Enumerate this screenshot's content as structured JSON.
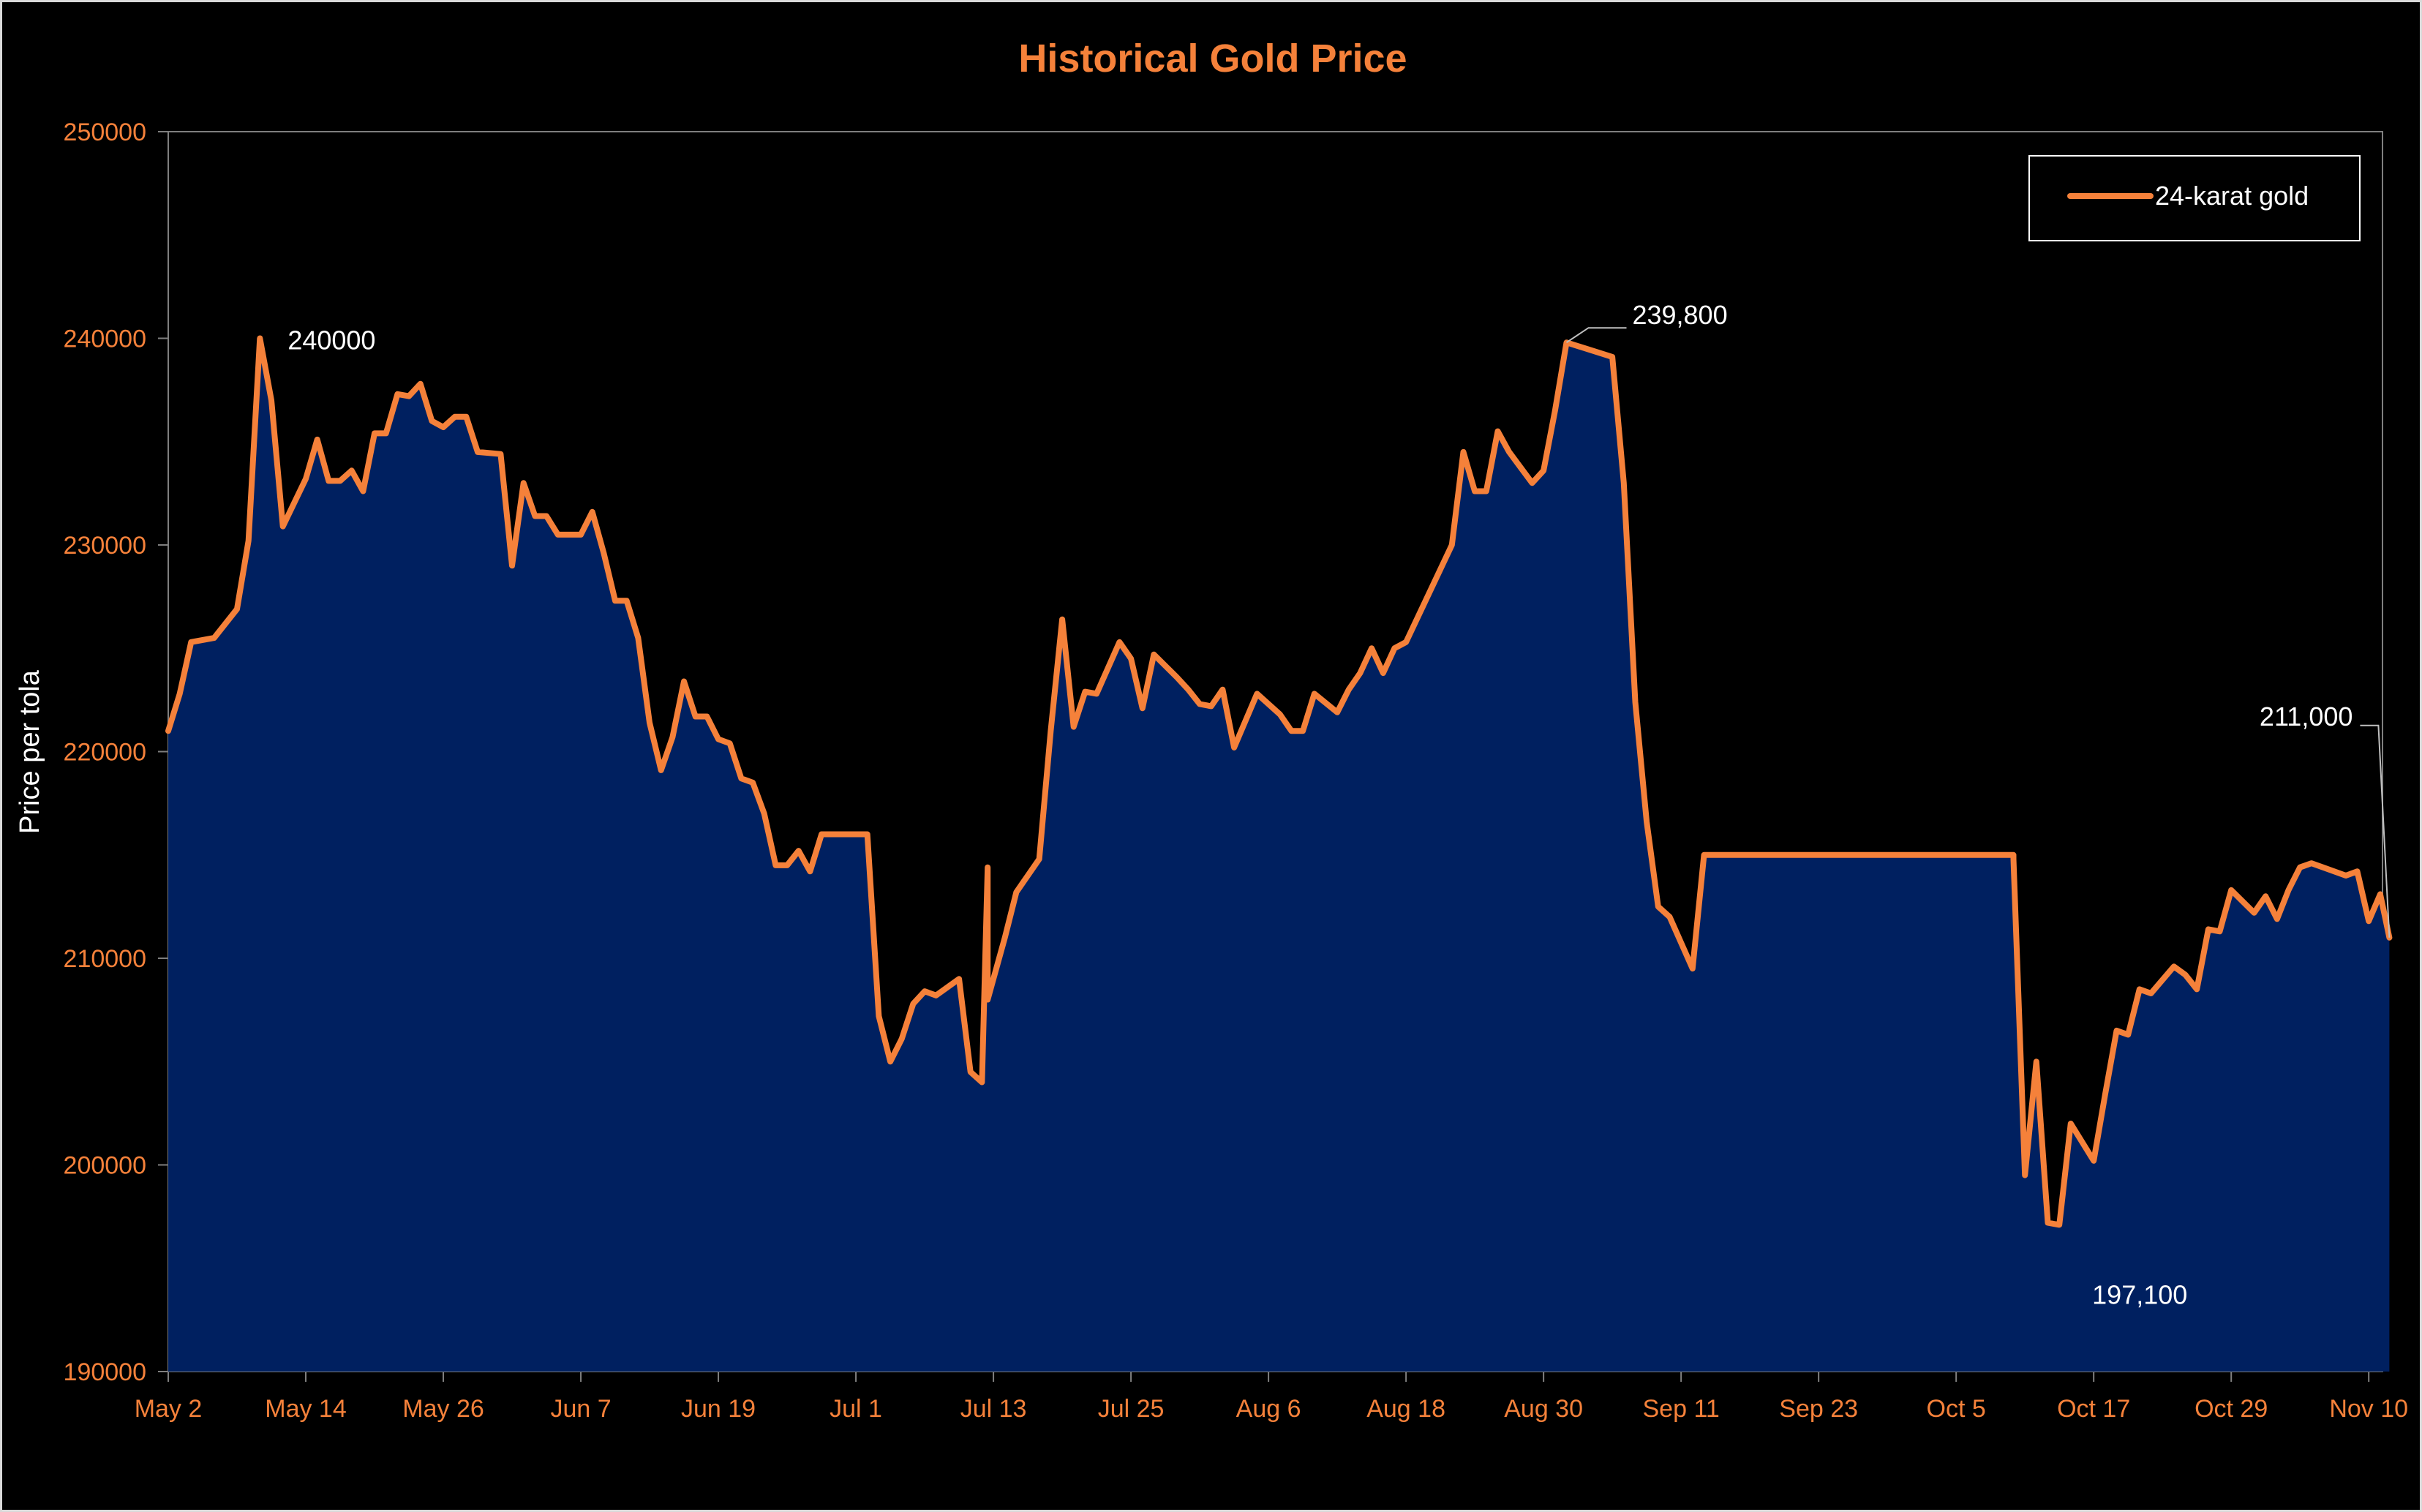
{
  "chart_data": {
    "type": "area",
    "title": "Historical Gold Price",
    "xlabel": "",
    "ylabel": "Price per tola",
    "ylim": [
      190000,
      250000
    ],
    "y_ticks": [
      "190000",
      "200000",
      "210000",
      "220000",
      "230000",
      "240000",
      "250000"
    ],
    "x_ticks": [
      {
        "label": "May 2",
        "day": 0
      },
      {
        "label": "May 14",
        "day": 12
      },
      {
        "label": "May 26",
        "day": 24
      },
      {
        "label": "Jun 7",
        "day": 36
      },
      {
        "label": "Jun 19",
        "day": 48
      },
      {
        "label": "Jul 1",
        "day": 60
      },
      {
        "label": "Jul 13",
        "day": 72
      },
      {
        "label": "Jul 25",
        "day": 84
      },
      {
        "label": "Aug 6",
        "day": 96
      },
      {
        "label": "Aug 18",
        "day": 108
      },
      {
        "label": "Aug 30",
        "day": 120
      },
      {
        "label": "Sep 11",
        "day": 132
      },
      {
        "label": "Sep 23",
        "day": 144
      },
      {
        "label": "Oct 5",
        "day": 156
      },
      {
        "label": "Oct 17",
        "day": 168
      },
      {
        "label": "Oct 29",
        "day": 180
      },
      {
        "label": "Nov 10",
        "day": 192
      }
    ],
    "x_range_days": [
      0,
      193.2
    ],
    "legend": {
      "position": "top-right",
      "entries": [
        "24-karat gold"
      ]
    },
    "grid": false,
    "colors": {
      "line": "#f5813a",
      "fill": "#002060",
      "text_axis": "#f5813a",
      "annotation": "#ffffff",
      "background": "#000000"
    },
    "series": [
      {
        "name": "24-karat gold",
        "points": [
          [
            0,
            221000
          ],
          [
            1,
            222800
          ],
          [
            2,
            225300
          ],
          [
            4,
            225500
          ],
          [
            6,
            226900
          ],
          [
            7,
            230200
          ],
          [
            8,
            240000
          ],
          [
            9,
            237000
          ],
          [
            10,
            230900
          ],
          [
            12,
            233200
          ],
          [
            13,
            235100
          ],
          [
            14,
            233100
          ],
          [
            15,
            233100
          ],
          [
            16,
            233600
          ],
          [
            17,
            232600
          ],
          [
            18,
            235400
          ],
          [
            19,
            235400
          ],
          [
            20,
            237300
          ],
          [
            21,
            237200
          ],
          [
            22,
            237800
          ],
          [
            23,
            236000
          ],
          [
            24,
            235700
          ],
          [
            25,
            236200
          ],
          [
            26,
            236200
          ],
          [
            27,
            234500
          ],
          [
            29,
            234400
          ],
          [
            30,
            229000
          ],
          [
            31,
            233000
          ],
          [
            32,
            231400
          ],
          [
            33,
            231400
          ],
          [
            34,
            230500
          ],
          [
            36,
            230500
          ],
          [
            37,
            231600
          ],
          [
            38,
            229600
          ],
          [
            39,
            227300
          ],
          [
            40,
            227300
          ],
          [
            41,
            225500
          ],
          [
            42,
            221400
          ],
          [
            43,
            219100
          ],
          [
            44,
            220700
          ],
          [
            45,
            223400
          ],
          [
            46,
            221700
          ],
          [
            47,
            221700
          ],
          [
            48,
            220600
          ],
          [
            49,
            220400
          ],
          [
            50,
            218700
          ],
          [
            51,
            218500
          ],
          [
            52,
            217000
          ],
          [
            53,
            214500
          ],
          [
            54,
            214500
          ],
          [
            55,
            215200
          ],
          [
            56,
            214200
          ],
          [
            57,
            216000
          ],
          [
            60,
            216000
          ],
          [
            61,
            216000
          ],
          [
            62,
            207200
          ],
          [
            63,
            205000
          ],
          [
            64,
            206100
          ],
          [
            65,
            207800
          ],
          [
            66,
            208400
          ],
          [
            67,
            208200
          ],
          [
            69,
            209000
          ],
          [
            70,
            204500
          ],
          [
            71,
            204000
          ],
          [
            71.5,
            214400
          ],
          [
            71.5,
            208000
          ],
          [
            73,
            211000
          ],
          [
            74,
            213200
          ],
          [
            76,
            214800
          ],
          [
            77,
            221000
          ],
          [
            78,
            226400
          ],
          [
            79,
            221200
          ],
          [
            80,
            222900
          ],
          [
            81,
            222800
          ],
          [
            83,
            225300
          ],
          [
            84,
            224500
          ],
          [
            85,
            222100
          ],
          [
            86,
            224700
          ],
          [
            88,
            223600
          ],
          [
            89,
            223000
          ],
          [
            90,
            222300
          ],
          [
            91,
            222200
          ],
          [
            92,
            223000
          ],
          [
            93,
            220200
          ],
          [
            95,
            222800
          ],
          [
            97,
            221800
          ],
          [
            98,
            221000
          ],
          [
            99,
            221000
          ],
          [
            100,
            222800
          ],
          [
            102,
            221900
          ],
          [
            103,
            223000
          ],
          [
            104,
            223800
          ],
          [
            105,
            225000
          ],
          [
            106,
            223800
          ],
          [
            107,
            225000
          ],
          [
            108,
            225300
          ],
          [
            112,
            230000
          ],
          [
            113,
            234500
          ],
          [
            114,
            232600
          ],
          [
            115,
            232600
          ],
          [
            116,
            235500
          ],
          [
            117,
            234500
          ],
          [
            119,
            233000
          ],
          [
            120,
            233600
          ],
          [
            121,
            236500
          ],
          [
            122,
            239800
          ],
          [
            126,
            239100
          ],
          [
            127,
            233000
          ],
          [
            128,
            222400
          ],
          [
            129,
            216600
          ],
          [
            130,
            212500
          ],
          [
            131,
            212000
          ],
          [
            133,
            209500
          ],
          [
            134,
            215000
          ],
          [
            161,
            215000
          ],
          [
            161,
            214800
          ],
          [
            162,
            199500
          ],
          [
            163,
            205000
          ],
          [
            164,
            197200
          ],
          [
            165,
            197100
          ],
          [
            166,
            202000
          ],
          [
            168,
            200200
          ],
          [
            169,
            203400
          ],
          [
            170,
            206500
          ],
          [
            171,
            206300
          ],
          [
            172,
            208500
          ],
          [
            173,
            208300
          ],
          [
            175,
            209600
          ],
          [
            176,
            209200
          ],
          [
            177,
            208500
          ],
          [
            178,
            211400
          ],
          [
            179,
            211300
          ],
          [
            180,
            213300
          ],
          [
            182,
            212200
          ],
          [
            183,
            213000
          ],
          [
            184,
            211900
          ],
          [
            185,
            213300
          ],
          [
            186,
            214400
          ],
          [
            187,
            214600
          ],
          [
            190,
            214000
          ],
          [
            191,
            214200
          ],
          [
            192,
            211800
          ],
          [
            193,
            213100
          ],
          [
            193.8,
            211000
          ]
        ]
      }
    ],
    "annotations": [
      {
        "text": "240000",
        "day": 8,
        "value": 240000,
        "leader": false
      },
      {
        "text": "239,800",
        "day": 122,
        "value": 239800,
        "leader": true
      },
      {
        "text": "197,100",
        "day": 165,
        "value": 197100,
        "leader": false
      },
      {
        "text": "211,000",
        "day": 193.8,
        "value": 211000,
        "leader": true
      }
    ]
  }
}
